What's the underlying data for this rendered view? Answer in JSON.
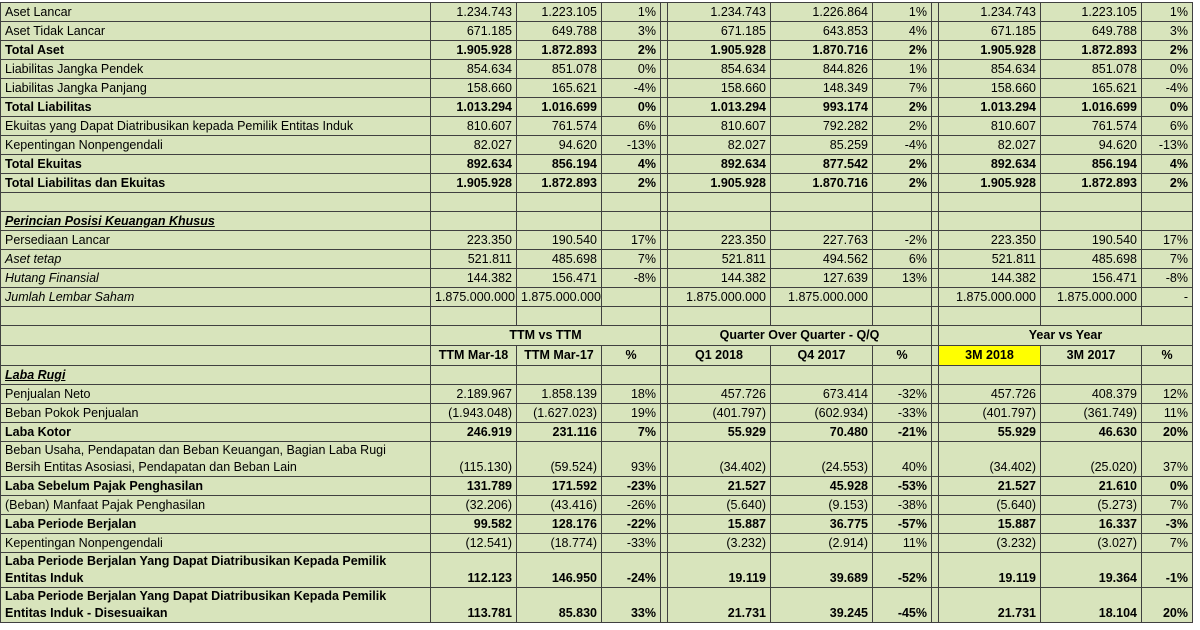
{
  "colors": {
    "cell_bg": "#d8e4bc",
    "highlight_bg": "#ffff00",
    "border": "#404040",
    "text": "#000000",
    "page_bg": "#ffffff"
  },
  "header": {
    "groups": [
      {
        "label": "TTM vs TTM"
      },
      {
        "label": "Quarter Over Quarter - Q/Q"
      },
      {
        "label": "Year vs Year"
      }
    ],
    "columns": [
      {
        "label": "TTM Mar-18",
        "highlight": false
      },
      {
        "label": "TTM Mar-17",
        "highlight": false
      },
      {
        "label": "%",
        "highlight": false
      },
      {
        "label": "Q1 2018",
        "highlight": false
      },
      {
        "label": "Q4 2017",
        "highlight": false
      },
      {
        "label": "%",
        "highlight": false
      },
      {
        "label": "3M 2018",
        "highlight": true
      },
      {
        "label": "3M 2017",
        "highlight": false
      },
      {
        "label": "%",
        "highlight": false
      }
    ]
  },
  "balance_rows": [
    {
      "label": "Aset Lancar",
      "style": "normal",
      "values": [
        "1.234.743",
        "1.223.105",
        "1%",
        "1.234.743",
        "1.226.864",
        "1%",
        "1.234.743",
        "1.223.105",
        "1%"
      ]
    },
    {
      "label": "Aset Tidak Lancar",
      "style": "normal",
      "values": [
        "671.185",
        "649.788",
        "3%",
        "671.185",
        "643.853",
        "4%",
        "671.185",
        "649.788",
        "3%"
      ]
    },
    {
      "label": "Total Aset",
      "style": "bold",
      "values": [
        "1.905.928",
        "1.872.893",
        "2%",
        "1.905.928",
        "1.870.716",
        "2%",
        "1.905.928",
        "1.872.893",
        "2%"
      ]
    },
    {
      "label": "Liabilitas Jangka Pendek",
      "style": "normal",
      "values": [
        "854.634",
        "851.078",
        "0%",
        "854.634",
        "844.826",
        "1%",
        "854.634",
        "851.078",
        "0%"
      ]
    },
    {
      "label": "Liabilitas Jangka Panjang",
      "style": "normal",
      "values": [
        "158.660",
        "165.621",
        "-4%",
        "158.660",
        "148.349",
        "7%",
        "158.660",
        "165.621",
        "-4%"
      ]
    },
    {
      "label": "Total Liabilitas",
      "style": "bold",
      "values": [
        "1.013.294",
        "1.016.699",
        "0%",
        "1.013.294",
        "993.174",
        "2%",
        "1.013.294",
        "1.016.699",
        "0%"
      ]
    },
    {
      "label": "Ekuitas yang Dapat Diatribusikan kepada Pemilik Entitas Induk",
      "style": "normal",
      "values": [
        "810.607",
        "761.574",
        "6%",
        "810.607",
        "792.282",
        "2%",
        "810.607",
        "761.574",
        "6%"
      ]
    },
    {
      "label": "Kepentingan Nonpengendali",
      "style": "normal",
      "values": [
        "82.027",
        "94.620",
        "-13%",
        "82.027",
        "85.259",
        "-4%",
        "82.027",
        "94.620",
        "-13%"
      ]
    },
    {
      "label": "Total Ekuitas",
      "style": "bold",
      "values": [
        "892.634",
        "856.194",
        "4%",
        "892.634",
        "877.542",
        "2%",
        "892.634",
        "856.194",
        "4%"
      ]
    },
    {
      "label": "Total Liabilitas dan Ekuitas",
      "style": "bold",
      "values": [
        "1.905.928",
        "1.872.893",
        "2%",
        "1.905.928",
        "1.870.716",
        "2%",
        "1.905.928",
        "1.872.893",
        "2%"
      ]
    },
    {
      "label": "",
      "style": "blank",
      "values": [
        "",
        "",
        "",
        "",
        "",
        "",
        "",
        "",
        ""
      ]
    },
    {
      "label": "Perincian Posisi Keuangan Khusus",
      "style": "section",
      "values": [
        "",
        "",
        "",
        "",
        "",
        "",
        "",
        "",
        ""
      ]
    },
    {
      "label": "Persediaan Lancar",
      "style": "normal",
      "values": [
        "223.350",
        "190.540",
        "17%",
        "223.350",
        "227.763",
        "-2%",
        "223.350",
        "190.540",
        "17%"
      ]
    },
    {
      "label": "Aset tetap",
      "style": "italic",
      "values": [
        "521.811",
        "485.698",
        "7%",
        "521.811",
        "494.562",
        "6%",
        "521.811",
        "485.698",
        "7%"
      ]
    },
    {
      "label": "Hutang Finansial",
      "style": "italic",
      "values": [
        "144.382",
        "156.471",
        "-8%",
        "144.382",
        "127.639",
        "13%",
        "144.382",
        "156.471",
        "-8%"
      ]
    },
    {
      "label": "Jumlah Lembar Saham",
      "style": "italic",
      "values": [
        "1.875.000.000",
        "1.875.000.000",
        "",
        "1.875.000.000",
        "1.875.000.000",
        "",
        "1.875.000.000",
        "1.875.000.000",
        "-"
      ]
    },
    {
      "label": "",
      "style": "blank",
      "values": [
        "",
        "",
        "",
        "",
        "",
        "",
        "",
        "",
        ""
      ]
    }
  ],
  "income_rows": [
    {
      "label": "Laba Rugi",
      "style": "section",
      "values": [
        "",
        "",
        "",
        "",
        "",
        "",
        "",
        "",
        ""
      ]
    },
    {
      "label": "Penjualan Neto",
      "style": "normal",
      "values": [
        "2.189.967",
        "1.858.139",
        "18%",
        "457.726",
        "673.414",
        "-32%",
        "457.726",
        "408.379",
        "12%"
      ]
    },
    {
      "label": "Beban Pokok Penjualan",
      "style": "normal",
      "values": [
        "(1.943.048)",
        "(1.627.023)",
        "19%",
        "(401.797)",
        "(602.934)",
        "-33%",
        "(401.797)",
        "(361.749)",
        "11%"
      ]
    },
    {
      "label": "Laba Kotor",
      "style": "bold",
      "values": [
        "246.919",
        "231.116",
        "7%",
        "55.929",
        "70.480",
        "-21%",
        "55.929",
        "46.630",
        "20%"
      ]
    },
    {
      "label": "Beban Usaha, Pendapatan dan Beban Keuangan, Bagian Laba Rugi",
      "label2": "Bersih Entitas Asosiasi, Pendapatan dan Beban Lain",
      "style": "normal",
      "wrap": true,
      "values": [
        "(115.130)",
        "(59.524)",
        "93%",
        "(34.402)",
        "(24.553)",
        "40%",
        "(34.402)",
        "(25.020)",
        "37%"
      ]
    },
    {
      "label": "Laba Sebelum Pajak Penghasilan",
      "style": "bold",
      "values": [
        "131.789",
        "171.592",
        "-23%",
        "21.527",
        "45.928",
        "-53%",
        "21.527",
        "21.610",
        "0%"
      ]
    },
    {
      "label": "(Beban) Manfaat Pajak Penghasilan",
      "style": "normal",
      "values": [
        "(32.206)",
        "(43.416)",
        "-26%",
        "(5.640)",
        "(9.153)",
        "-38%",
        "(5.640)",
        "(5.273)",
        "7%"
      ]
    },
    {
      "label": "Laba Periode Berjalan",
      "style": "bold",
      "values": [
        "99.582",
        "128.176",
        "-22%",
        "15.887",
        "36.775",
        "-57%",
        "15.887",
        "16.337",
        "-3%"
      ]
    },
    {
      "label": "Kepentingan Nonpengendali",
      "style": "normal",
      "values": [
        "(12.541)",
        "(18.774)",
        "-33%",
        "(3.232)",
        "(2.914)",
        "11%",
        "(3.232)",
        "(3.027)",
        "7%"
      ]
    },
    {
      "label": "Laba Periode Berjalan Yang Dapat Diatribusikan Kepada Pemilik",
      "label2": "Entitas Induk",
      "style": "bold",
      "wrap": true,
      "values": [
        "112.123",
        "146.950",
        "-24%",
        "19.119",
        "39.689",
        "-52%",
        "19.119",
        "19.364",
        "-1%"
      ]
    },
    {
      "label": "Laba Periode Berjalan Yang Dapat Diatribusikan Kepada Pemilik",
      "label2": "Entitas Induk - Disesuaikan",
      "style": "bold",
      "wrap": true,
      "values": [
        "113.781",
        "85.830",
        "33%",
        "21.731",
        "39.245",
        "-45%",
        "21.731",
        "18.104",
        "20%"
      ]
    }
  ]
}
